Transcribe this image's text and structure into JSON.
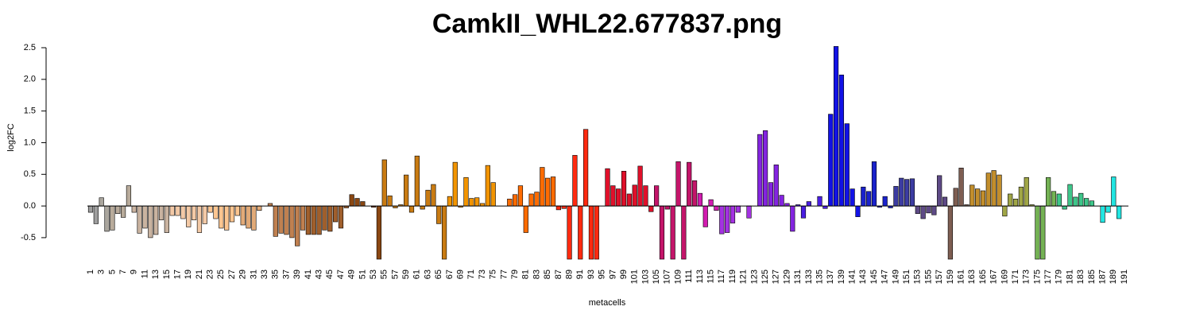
{
  "chart_data": {
    "type": "bar",
    "title": "CamkII_WHL22.677837.png",
    "ylabel": "log2FC",
    "xlabel": "metacells",
    "categories": [
      "1",
      null,
      "3",
      null,
      "5",
      null,
      "7",
      null,
      "9",
      null,
      "11",
      null,
      "13",
      null,
      "15",
      null,
      "17",
      null,
      "19",
      null,
      "21",
      null,
      "23",
      null,
      "25",
      null,
      "27",
      null,
      "29",
      null,
      "31",
      null,
      "33",
      null,
      "35",
      null,
      "37",
      null,
      "39",
      null,
      "41",
      null,
      "43",
      null,
      "45",
      null,
      "47",
      null,
      "49",
      null,
      "51",
      null,
      "53",
      null,
      "55",
      null,
      "57",
      null,
      "59",
      null,
      "61",
      null,
      "63",
      null,
      "65",
      null,
      "67",
      null,
      "69",
      null,
      "71",
      null,
      "73",
      null,
      "75",
      null,
      "77",
      null,
      "79",
      null,
      "81",
      null,
      "83",
      null,
      "85",
      null,
      "87",
      null,
      "89",
      null,
      "91",
      null,
      "93",
      null,
      "95",
      null,
      "97",
      null,
      "99",
      null,
      "101",
      null,
      "103",
      null,
      "105",
      null,
      "107",
      null,
      "109",
      null,
      "111",
      null,
      "113",
      null,
      "115",
      null,
      "117",
      null,
      "119",
      null,
      "121",
      null,
      "123",
      null,
      "125",
      null,
      "127",
      null,
      "129",
      null,
      "131",
      null,
      "133",
      null,
      "135",
      null,
      "137",
      null,
      "139",
      null,
      "141",
      null,
      "143",
      null,
      "145",
      null,
      "147",
      null,
      "149",
      null,
      "151",
      null,
      "153",
      null,
      "155",
      null,
      "157",
      null,
      "159",
      null,
      "161",
      null,
      "163",
      null,
      "165",
      null,
      "167",
      null,
      "169",
      null,
      "171",
      null,
      "173",
      null,
      "175",
      null,
      "177",
      null,
      "179",
      null,
      "181",
      null,
      "183",
      null,
      "185",
      null,
      "187",
      null,
      "189",
      null,
      "191"
    ],
    "values": [
      -0.1,
      -0.28,
      0.13,
      -0.4,
      -0.38,
      -0.12,
      -0.18,
      0.32,
      -0.1,
      -0.43,
      -0.35,
      -0.5,
      -0.45,
      -0.22,
      -0.42,
      -0.15,
      -0.15,
      -0.2,
      -0.33,
      -0.22,
      -0.42,
      -0.28,
      -0.1,
      -0.2,
      -0.35,
      -0.38,
      -0.25,
      -0.15,
      -0.3,
      -0.35,
      -0.38,
      -0.07,
      0.0,
      0.04,
      -0.48,
      -0.43,
      -0.45,
      -0.5,
      -0.63,
      -0.38,
      -0.45,
      -0.45,
      -0.45,
      -0.38,
      -0.4,
      -0.25,
      -0.35,
      -0.03,
      0.18,
      0.12,
      0.07,
      0.0,
      -0.02,
      -0.84,
      0.73,
      0.16,
      -0.03,
      0.02,
      0.49,
      -0.1,
      0.79,
      -0.05,
      0.25,
      0.34,
      -0.28,
      -0.84,
      0.15,
      0.69,
      -0.02,
      0.45,
      0.12,
      0.13,
      0.04,
      0.64,
      0.37,
      0.0,
      0.0,
      0.11,
      0.18,
      0.32,
      -0.42,
      0.19,
      0.22,
      0.61,
      0.44,
      0.46,
      -0.06,
      -0.04,
      -0.84,
      0.8,
      -0.84,
      1.21,
      -0.84,
      -0.84,
      0.0,
      0.59,
      0.32,
      0.27,
      0.55,
      0.19,
      0.33,
      0.63,
      0.32,
      -0.09,
      0.32,
      -0.84,
      -0.05,
      -0.84,
      0.7,
      -0.84,
      0.69,
      0.4,
      0.2,
      -0.33,
      0.1,
      -0.07,
      -0.44,
      -0.42,
      -0.27,
      -0.1,
      0.0,
      -0.19,
      0.0,
      1.13,
      1.19,
      0.37,
      0.65,
      0.17,
      0.04,
      -0.4,
      0.02,
      -0.19,
      0.07,
      0.0,
      0.15,
      -0.04,
      1.45,
      2.52,
      2.07,
      1.3,
      0.27,
      -0.17,
      0.3,
      0.23,
      0.7,
      -0.02,
      0.15,
      -0.03,
      0.31,
      0.44,
      0.42,
      0.43,
      -0.12,
      -0.2,
      -0.11,
      -0.14,
      0.48,
      0.14,
      -0.84,
      0.28,
      0.6,
      0.02,
      0.33,
      0.27,
      0.24,
      0.52,
      0.56,
      0.49,
      -0.16,
      0.19,
      0.11,
      0.3,
      0.45,
      0.02,
      -0.84,
      -0.84,
      0.45,
      0.23,
      0.19,
      -0.05,
      0.34,
      0.14,
      0.2,
      0.12,
      0.08,
      0.0,
      -0.26,
      -0.1,
      0.46,
      -0.2,
      0.0
    ],
    "colors": [
      "#9e9e9e",
      "#9e9e9e",
      "#aaa69e",
      "#aaa69e",
      "#b8ab9b",
      "#b8ab9b",
      "#b8ab9b",
      "#b8ab9b",
      "#c9b3a0",
      "#c9b3a0",
      "#c9b3a0",
      "#c9b3a0",
      "#c9b3a0",
      "#c9b3a0",
      "#c9b3a0",
      "#f3c9a6",
      "#f3c9a6",
      "#f3c9a6",
      "#f3c9a6",
      "#f3c9a6",
      "#f3c9a6",
      "#f3c9a6",
      "#fcc590",
      "#fcc590",
      "#fcc590",
      "#fcc590",
      "#fcc590",
      "#fcc590",
      "#e2aa78",
      "#e2aa78",
      "#e2aa78",
      "#e2aa78",
      "#c08050",
      "#c08050",
      "#c08050",
      "#c08050",
      "#c08050",
      "#c08050",
      "#c08050",
      "#c08050",
      "#a05f2c",
      "#a05f2c",
      "#a05f2c",
      "#a05f2c",
      "#a05f2c",
      "#a05f2c",
      "#a05f2c",
      "#a05f2c",
      "#8a4712",
      "#8a4712",
      "#8a4712",
      "#8a4712",
      "#8a4712",
      "#8a4712",
      "#c97b12",
      "#c97b12",
      "#c97b12",
      "#c97b12",
      "#c97b12",
      "#c97b12",
      "#c97b12",
      "#c97b12",
      "#c97b12",
      "#c97b12",
      "#c97b12",
      "#c97b12",
      "#f29400",
      "#f29400",
      "#f29400",
      "#f29400",
      "#f29400",
      "#f29400",
      "#f29400",
      "#f29400",
      "#f29400",
      "#f29400",
      "#ff6c00",
      "#ff6c00",
      "#ff6c00",
      "#ff6c00",
      "#ff6c00",
      "#ff6c00",
      "#ff6c00",
      "#ff6c00",
      "#ff6c00",
      "#ff6c00",
      "#ff2a10",
      "#ff2a10",
      "#ff2a10",
      "#ff2a10",
      "#ff2a10",
      "#ff2a10",
      "#ff2a10",
      "#ff2a10",
      "#e0102a",
      "#e0102a",
      "#e0102a",
      "#e0102a",
      "#e0102a",
      "#e0102a",
      "#e0102a",
      "#e0102a",
      "#e0102a",
      "#e0102a",
      "#c4156a",
      "#c4156a",
      "#c4156a",
      "#c4156a",
      "#c4156a",
      "#c4156a",
      "#c4156a",
      "#c4156a",
      "#d21cb0",
      "#d21cb0",
      "#d21cb0",
      "#d21cb0",
      "#a432e2",
      "#a432e2",
      "#a432e2",
      "#a432e2",
      "#a432e2",
      "#a432e2",
      "#8424e0",
      "#8424e0",
      "#8424e0",
      "#8424e0",
      "#8424e0",
      "#8424e0",
      "#8424e0",
      "#8424e0",
      "#4a1ee2",
      "#4a1ee2",
      "#4a1ee2",
      "#4a1ee2",
      "#4a1ee2",
      "#4a1ee2",
      "#1212e6",
      "#1212e6",
      "#1212e6",
      "#1212e6",
      "#1212e6",
      "#1212e6",
      "#1a22cc",
      "#1a22cc",
      "#1a22cc",
      "#1a22cc",
      "#1a22cc",
      "#1a22cc",
      "#3c3ca2",
      "#3c3ca2",
      "#3c3ca2",
      "#3c3ca2",
      "#5e4a86",
      "#5e4a86",
      "#5e4a86",
      "#5e4a86",
      "#5e4a86",
      "#5e4a86",
      "#7e5e52",
      "#7e5e52",
      "#7e5e52",
      "#7e5e52",
      "#c28e2c",
      "#c28e2c",
      "#c28e2c",
      "#c28e2c",
      "#c28e2c",
      "#c28e2c",
      "#a0a646",
      "#a0a646",
      "#a0a646",
      "#a0a646",
      "#a0a646",
      "#a0a646",
      "#74b254",
      "#74b254",
      "#74b254",
      "#74b254",
      "#3ec68a",
      "#3ec68a",
      "#3ec68a",
      "#3ec68a",
      "#3ec68a",
      "#3ec68a",
      "#3ec68a",
      "#3ec68a",
      "#22e6e2",
      "#22e6e2",
      "#22e6e2",
      "#22e6e2",
      "#22e6e2"
    ],
    "ylim": [
      -0.84,
      2.5
    ],
    "yticks": [
      -0.5,
      {
        "value": 0,
        "label": "0.0"
      },
      0.5,
      {
        "value": 1,
        "label": "1.0"
      },
      1.5,
      {
        "value": 2,
        "label": "2.0"
      },
      2.5
    ]
  }
}
